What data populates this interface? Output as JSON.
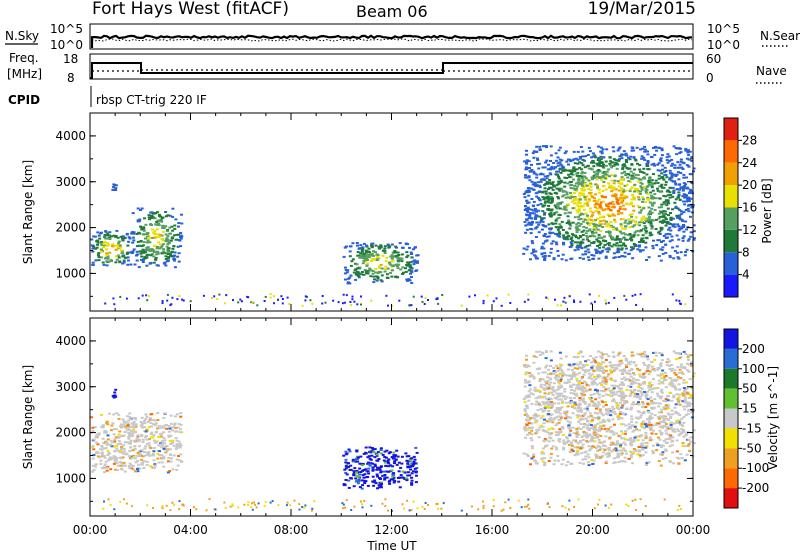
{
  "header": {
    "station": "Fort Hays West (fitACF)",
    "beam": "Beam 06",
    "date": "19/Mar/2015"
  },
  "top_panels": {
    "nsky_label": "N.Sky",
    "nsky_ticks": [
      "10^5",
      "10^0"
    ],
    "nsearch_label": "N.Search",
    "nsearch_ticks": [
      "10^5",
      "10^0"
    ],
    "freq_label": "Freq.",
    "freq_unit": "[MHz]",
    "freq_ticks": [
      "18",
      "8"
    ],
    "nave_label": "Nave",
    "nave_ticks": [
      "60",
      "0"
    ],
    "cpid_label": "CPID",
    "cpid_value": "rbsp CT-trig 220 IF"
  },
  "colors": {
    "power": [
      "#1a1aff",
      "#2860d8",
      "#1f7a3a",
      "#55a060",
      "#e8e000",
      "#f0a000",
      "#ff6a00",
      "#e02010"
    ],
    "velocity": [
      "#1414e0",
      "#2a6bd6",
      "#1a7a2a",
      "#60c030",
      "#c8c8c8",
      "#f0e000",
      "#f0a020",
      "#ff6a00",
      "#e01010"
    ]
  },
  "chart_data": [
    {
      "type": "heatmap",
      "name": "power",
      "x": {
        "label": "Time UT",
        "ticks": [
          "00:00",
          "04:00",
          "08:00",
          "12:00",
          "16:00",
          "20:00",
          "00:00"
        ],
        "range_hours": [
          0,
          24
        ]
      },
      "y": {
        "label": "Slant Range [km]",
        "ticks": [
          "1000",
          "2000",
          "3000",
          "4000"
        ],
        "range_km": [
          180,
          4500
        ]
      },
      "colorbar": {
        "label": "Power [dB]",
        "ticks": [
          "4",
          "8",
          "12",
          "16",
          "20",
          "24",
          "28"
        ],
        "range": [
          0,
          30
        ]
      },
      "regions": [
        {
          "t0": 0.0,
          "t1": 1.6,
          "r0": 1150,
          "r1": 1950,
          "v0": 6,
          "v1": 26
        },
        {
          "t0": 1.6,
          "t1": 3.6,
          "r0": 1150,
          "r1": 2450,
          "v0": 6,
          "v1": 22
        },
        {
          "t0": 10.0,
          "t1": 13.0,
          "r0": 800,
          "r1": 1700,
          "v0": 6,
          "v1": 22
        },
        {
          "t0": 17.2,
          "t1": 24.0,
          "r0": 1300,
          "r1": 3800,
          "v0": 4,
          "v1": 28
        },
        {
          "t0": 0.8,
          "t1": 1.0,
          "r0": 2700,
          "r1": 3100,
          "v0": 4,
          "v1": 10
        }
      ]
    },
    {
      "type": "heatmap",
      "name": "velocity",
      "x": {
        "label": "Time UT",
        "ticks": [
          "00:00",
          "04:00",
          "08:00",
          "12:00",
          "16:00",
          "20:00",
          "00:00"
        ],
        "range_hours": [
          0,
          24
        ]
      },
      "y": {
        "label": "Slant Range [km]",
        "ticks": [
          "1000",
          "2000",
          "3000",
          "4000"
        ],
        "range_km": [
          180,
          4500
        ]
      },
      "colorbar": {
        "label": "Velocity [m s^-1]",
        "ticks": [
          "200",
          "100",
          "50",
          "15",
          "-15",
          "-50",
          "-100",
          "-200"
        ],
        "range": [
          250,
          -250
        ]
      },
      "regions": [
        {
          "t0": 0.0,
          "t1": 3.6,
          "r0": 1150,
          "r1": 2450,
          "v": 0
        },
        {
          "t0": 10.0,
          "t1": 13.0,
          "r0": 800,
          "r1": 1700,
          "v": 220
        },
        {
          "t0": 17.2,
          "t1": 24.0,
          "r0": 1300,
          "r1": 3800,
          "v": 0
        },
        {
          "t0": 0.8,
          "t1": 1.0,
          "r0": 2700,
          "r1": 3100,
          "v": 200
        }
      ]
    }
  ]
}
